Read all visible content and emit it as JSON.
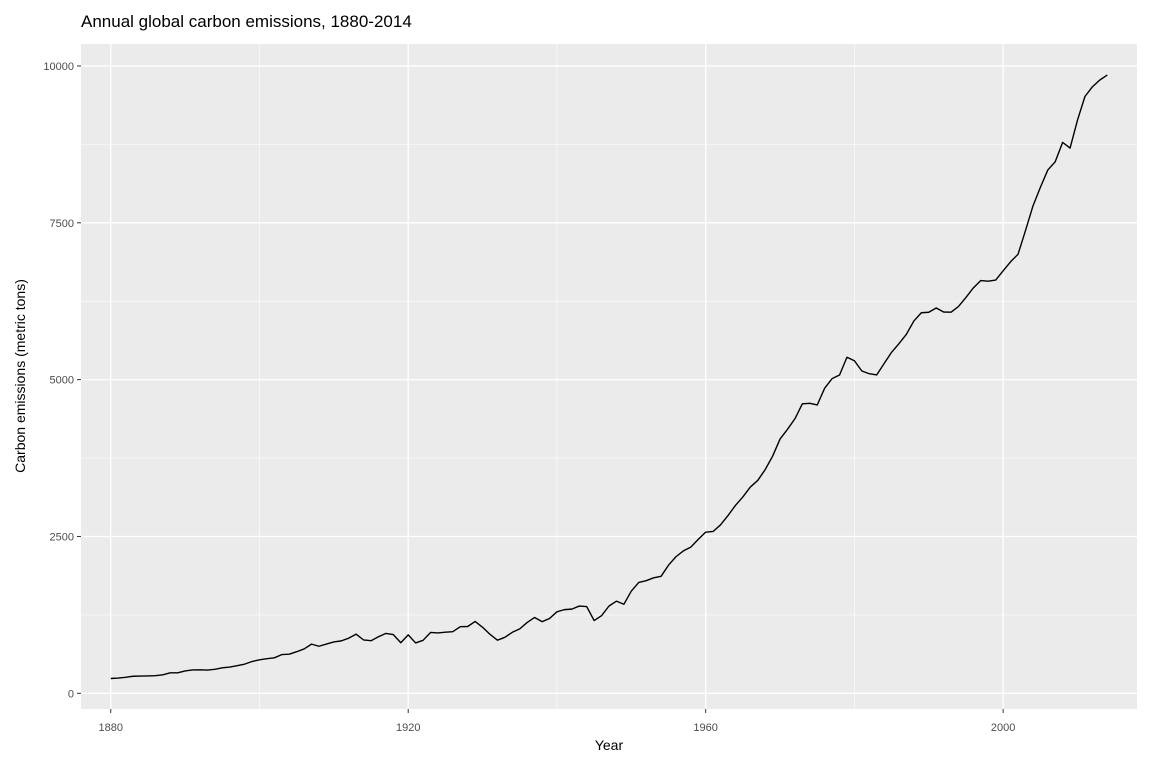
{
  "chart_data": {
    "type": "line",
    "title": "Annual global carbon emissions, 1880-2014",
    "xlabel": "Year",
    "ylabel": "Carbon emissions (metric tons)",
    "xlim": [
      1876,
      2018
    ],
    "ylim": [
      -250,
      10350
    ],
    "x_ticks": [
      1880,
      1920,
      1960,
      2000
    ],
    "x_tick_labels": [
      "1880",
      "1920",
      "1960",
      "2000"
    ],
    "y_ticks": [
      0,
      2500,
      5000,
      7500,
      10000
    ],
    "y_tick_labels": [
      "0",
      "2500",
      "5000",
      "7500",
      "10000"
    ],
    "grid": true,
    "legend": "none",
    "colors": {
      "panel": "#ebebeb",
      "grid": "#ffffff",
      "line": "#000000",
      "tick_text": "#4d4d4d"
    },
    "series": [
      {
        "x": [
          1880,
          1881,
          1882,
          1883,
          1884,
          1885,
          1886,
          1887,
          1888,
          1889,
          1890,
          1891,
          1892,
          1893,
          1894,
          1895,
          1896,
          1897,
          1898,
          1899,
          1900,
          1901,
          1902,
          1903,
          1904,
          1905,
          1906,
          1907,
          1908,
          1909,
          1910,
          1911,
          1912,
          1913,
          1914,
          1915,
          1916,
          1917,
          1918,
          1919,
          1920,
          1921,
          1922,
          1923,
          1924,
          1925,
          1926,
          1927,
          1928,
          1929,
          1930,
          1931,
          1932,
          1933,
          1934,
          1935,
          1936,
          1937,
          1938,
          1939,
          1940,
          1941,
          1942,
          1943,
          1944,
          1945,
          1946,
          1947,
          1948,
          1949,
          1950,
          1951,
          1952,
          1953,
          1954,
          1955,
          1956,
          1957,
          1958,
          1959,
          1960,
          1961,
          1962,
          1963,
          1964,
          1965,
          1966,
          1967,
          1968,
          1969,
          1970,
          1971,
          1972,
          1973,
          1974,
          1975,
          1976,
          1977,
          1978,
          1979,
          1980,
          1981,
          1982,
          1983,
          1984,
          1985,
          1986,
          1987,
          1988,
          1989,
          1990,
          1991,
          1992,
          1993,
          1994,
          1995,
          1996,
          1997,
          1998,
          1999,
          2000,
          2001,
          2002,
          2003,
          2004,
          2005,
          2006,
          2007,
          2008,
          2009,
          2010,
          2011,
          2012,
          2013,
          2014
        ],
        "values": [
          236,
          243,
          256,
          272,
          275,
          277,
          281,
          295,
          327,
          327,
          356,
          372,
          374,
          370,
          383,
          406,
          419,
          440,
          465,
          507,
          534,
          552,
          566,
          617,
          624,
          663,
          707,
          784,
          750,
          785,
          819,
          836,
          879,
          943,
          850,
          838,
          901,
          955,
          936,
          806,
          932,
          803,
          845,
          970,
          963,
          975,
          983,
          1062,
          1065,
          1145,
          1053,
          940,
          847,
          893,
          973,
          1027,
          1130,
          1209,
          1142,
          1192,
          1299,
          1334,
          1342,
          1391,
          1383,
          1160,
          1238,
          1392,
          1469,
          1419,
          1630,
          1767,
          1795,
          1841,
          1865,
          2042,
          2177,
          2270,
          2330,
          2454,
          2569,
          2580,
          2686,
          2833,
          2995,
          3130,
          3288,
          3393,
          3566,
          3780,
          4053,
          4208,
          4376,
          4614,
          4623,
          4596,
          4864,
          5016,
          5074,
          5357,
          5301,
          5138,
          5094,
          5075,
          5258,
          5436,
          5575,
          5725,
          5936,
          6066,
          6074,
          6142,
          6078,
          6075,
          6166,
          6311,
          6463,
          6580,
          6570,
          6588,
          6734,
          6879,
          6998,
          7374,
          7765,
          8063,
          8341,
          8473,
          8782,
          8691,
          9138,
          9513,
          9667,
          9776,
          9855
        ]
      }
    ]
  }
}
